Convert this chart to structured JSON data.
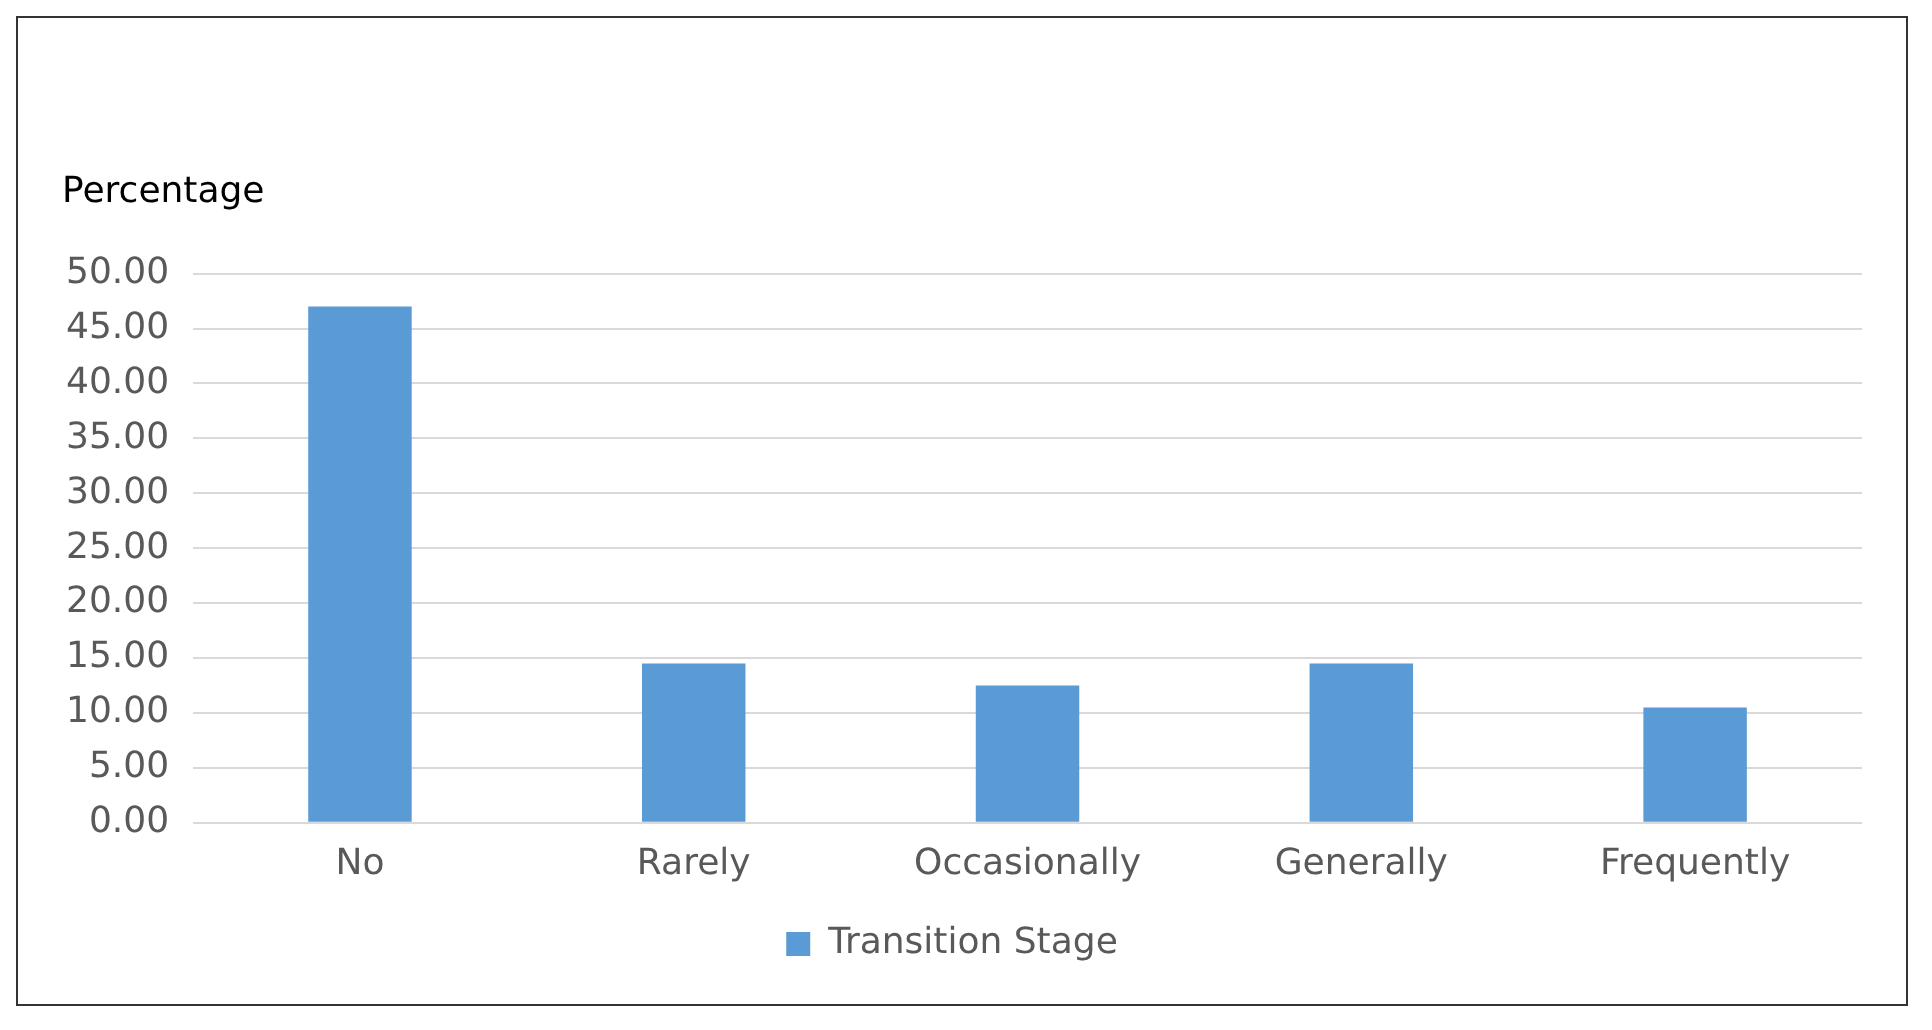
{
  "chart_data": {
    "type": "bar",
    "ylabel": "Percentage",
    "categories": [
      "No",
      "Rarely",
      "Occasionally",
      "Generally",
      "Frequently"
    ],
    "series": [
      {
        "name": "Transition Stage",
        "color": "#5b9bd5",
        "values": [
          47.0,
          14.5,
          12.5,
          14.5,
          10.5
        ]
      }
    ],
    "ylim": [
      0,
      50
    ],
    "yticks": [
      {
        "value": 0,
        "label": "0.00"
      },
      {
        "value": 5,
        "label": "5.00"
      },
      {
        "value": 10,
        "label": "10.00"
      },
      {
        "value": 15,
        "label": "15.00"
      },
      {
        "value": 20,
        "label": "20.00"
      },
      {
        "value": 25,
        "label": "25.00"
      },
      {
        "value": 30,
        "label": "30.00"
      },
      {
        "value": 35,
        "label": "35.00"
      },
      {
        "value": 40,
        "label": "40.00"
      },
      {
        "value": 45,
        "label": "45.00"
      },
      {
        "value": 50,
        "label": "50.00"
      }
    ],
    "grid": "y",
    "legend": "bottom"
  }
}
